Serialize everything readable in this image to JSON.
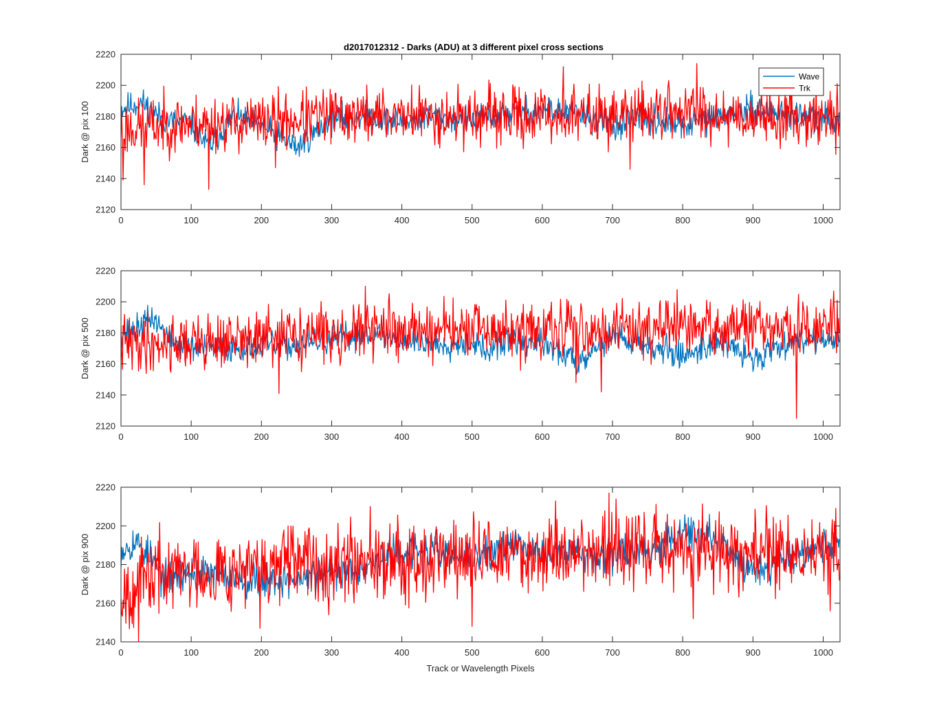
{
  "figure": {
    "title": "d2017012312 - Darks (ADU) at 3 different pixel cross sections",
    "xlabel": "Track or Wavelength Pixels"
  },
  "colors": {
    "wave": "#0072BD",
    "trk": "#FF0000",
    "axis": "#262626",
    "background": "#ffffff"
  },
  "chart_data": [
    {
      "type": "line",
      "title": "d2017012312 - Darks (ADU) at 3 different pixel cross sections",
      "xlabel": "",
      "ylabel": "Dark @ pix 100",
      "xlim": [
        0,
        1024
      ],
      "ylim": [
        2120,
        2220
      ],
      "xticks": [
        0,
        100,
        200,
        300,
        400,
        500,
        600,
        700,
        800,
        900,
        1000
      ],
      "yticks": [
        2120,
        2140,
        2160,
        2180,
        2200,
        2220
      ],
      "grid": false,
      "legend": {
        "placement": "top-right",
        "entries": [
          "Wave",
          "Trk"
        ]
      },
      "n_points": 1024,
      "series": [
        {
          "name": "Wave",
          "color": "#0072BD",
          "trend_x": [
            0,
            30,
            60,
            100,
            125,
            160,
            200,
            250,
            300,
            350,
            400,
            450,
            500,
            550,
            600,
            650,
            700,
            750,
            800,
            850,
            900,
            950,
            1000,
            1024
          ],
          "trend_y": [
            2185,
            2189,
            2178,
            2175,
            2160,
            2180,
            2174,
            2160,
            2178,
            2180,
            2177,
            2180,
            2177,
            2182,
            2184,
            2182,
            2174,
            2178,
            2174,
            2180,
            2184,
            2182,
            2178,
            2178
          ],
          "noise_amplitude": 5,
          "seed": 11
        },
        {
          "name": "Trk",
          "color": "#FF0000",
          "trend_x": [
            0,
            50,
            100,
            200,
            300,
            400,
            500,
            600,
            700,
            800,
            900,
            1000,
            1024
          ],
          "trend_y": [
            2172,
            2174,
            2176,
            2176,
            2180,
            2181,
            2180,
            2180,
            2181,
            2184,
            2180,
            2180,
            2176
          ],
          "noise_amplitude": 10,
          "seed": 23,
          "spikes": [
            [
              3,
              2139
            ],
            [
              33,
              2136
            ],
            [
              125,
              2133
            ],
            [
              220,
              2147
            ],
            [
              630,
              2212
            ],
            [
              820,
              2214
            ],
            [
              725,
              2146
            ],
            [
              1020,
              2201
            ]
          ]
        }
      ]
    },
    {
      "type": "line",
      "xlabel": "",
      "ylabel": "Dark @ pix 500",
      "xlim": [
        0,
        1024
      ],
      "ylim": [
        2120,
        2220
      ],
      "xticks": [
        0,
        100,
        200,
        300,
        400,
        500,
        600,
        700,
        800,
        900,
        1000
      ],
      "yticks": [
        2120,
        2140,
        2160,
        2180,
        2200,
        2220
      ],
      "grid": false,
      "n_points": 1024,
      "series": [
        {
          "name": "Wave",
          "color": "#0072BD",
          "trend_x": [
            0,
            20,
            45,
            70,
            100,
            150,
            200,
            250,
            300,
            350,
            400,
            450,
            500,
            520,
            550,
            600,
            650,
            700,
            750,
            800,
            850,
            900,
            950,
            1000,
            1024
          ],
          "trend_y": [
            2180,
            2182,
            2190,
            2176,
            2170,
            2170,
            2172,
            2172,
            2175,
            2180,
            2175,
            2172,
            2175,
            2167,
            2175,
            2173,
            2162,
            2178,
            2172,
            2165,
            2175,
            2163,
            2175,
            2177,
            2172
          ],
          "noise_amplitude": 5,
          "seed": 37
        },
        {
          "name": "Trk",
          "color": "#FF0000",
          "trend_x": [
            0,
            100,
            200,
            300,
            400,
            500,
            600,
            700,
            800,
            900,
            1000,
            1024
          ],
          "trend_y": [
            2173,
            2174,
            2176,
            2180,
            2182,
            2181,
            2180,
            2184,
            2183,
            2183,
            2182,
            2186
          ],
          "noise_amplitude": 10,
          "seed": 41,
          "spikes": [
            [
              225,
              2141
            ],
            [
              348,
              2210
            ],
            [
              648,
              2148
            ],
            [
              684,
              2142
            ],
            [
              962,
              2125
            ],
            [
              1015,
              2207
            ]
          ]
        }
      ]
    },
    {
      "type": "line",
      "xlabel": "Track or Wavelength Pixels",
      "ylabel": "Dark @ pix 900",
      "xlim": [
        0,
        1024
      ],
      "ylim": [
        2140,
        2220
      ],
      "xticks": [
        0,
        100,
        200,
        300,
        400,
        500,
        600,
        700,
        800,
        900,
        1000
      ],
      "yticks": [
        2140,
        2160,
        2180,
        2200,
        2220
      ],
      "grid": false,
      "n_points": 1024,
      "series": [
        {
          "name": "Wave",
          "color": "#0072BD",
          "trend_x": [
            0,
            20,
            40,
            60,
            100,
            150,
            200,
            250,
            300,
            350,
            400,
            450,
            500,
            550,
            600,
            650,
            700,
            750,
            800,
            850,
            900,
            950,
            1000,
            1024
          ],
          "trend_y": [
            2188,
            2192,
            2185,
            2172,
            2176,
            2174,
            2172,
            2172,
            2175,
            2180,
            2186,
            2187,
            2182,
            2190,
            2186,
            2186,
            2186,
            2187,
            2198,
            2192,
            2177,
            2184,
            2190,
            2192
          ],
          "noise_amplitude": 5,
          "seed": 53
        },
        {
          "name": "Trk",
          "color": "#FF0000",
          "trend_x": [
            0,
            50,
            100,
            200,
            300,
            400,
            500,
            600,
            700,
            800,
            900,
            1000,
            1024
          ],
          "trend_y": [
            2166,
            2175,
            2177,
            2178,
            2182,
            2184,
            2184,
            2186,
            2188,
            2188,
            2186,
            2185,
            2185
          ],
          "noise_amplitude": 11,
          "seed": 67,
          "spikes": [
            [
              25,
              2140
            ],
            [
              198,
              2147
            ],
            [
              355,
              2210
            ],
            [
              500,
              2148
            ],
            [
              695,
              2217
            ],
            [
              815,
              2152
            ],
            [
              1010,
              2156
            ],
            [
              1018,
              2209
            ]
          ]
        }
      ]
    }
  ]
}
